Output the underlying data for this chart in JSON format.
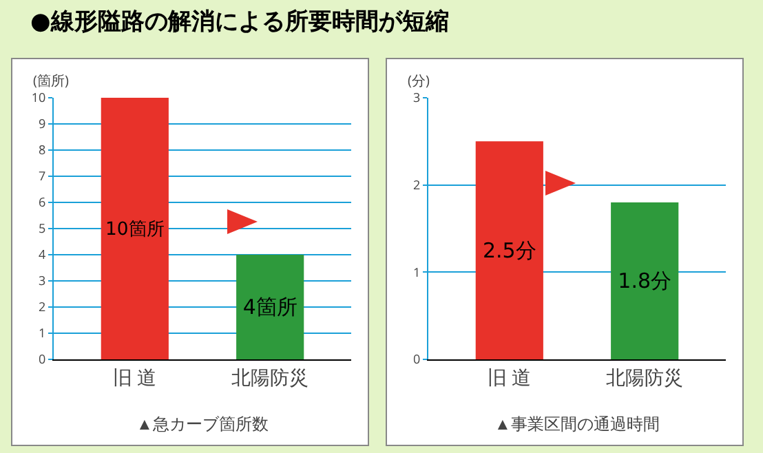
{
  "chart_data": [
    {
      "type": "bar",
      "title": "●線形隘路の解消による所要時間が短縮",
      "ylabel": "(箇所)",
      "categories": [
        "旧 道",
        "北陽防災"
      ],
      "values": [
        10,
        4
      ],
      "colors": [
        "#e8322a",
        "#2e9a3c"
      ],
      "value_labels": [
        "10箇所",
        "4箇所"
      ],
      "ylim": [
        0,
        10
      ],
      "yticks": [
        0,
        1,
        2,
        3,
        4,
        5,
        6,
        7,
        8,
        9,
        10
      ],
      "grid": "y",
      "annotations": [
        "▲急カーブ箇所数"
      ]
    },
    {
      "type": "bar",
      "ylabel": "(分)",
      "categories": [
        "旧 道",
        "北陽防災"
      ],
      "values": [
        2.5,
        1.8
      ],
      "colors": [
        "#e8322a",
        "#2e9a3c"
      ],
      "value_labels": [
        "2.5分",
        "1.8分"
      ],
      "ylim": [
        0,
        3
      ],
      "yticks": [
        0,
        1,
        2,
        3
      ],
      "grid": "y",
      "annotations": [
        "▲事業区間の通過時間"
      ]
    }
  ]
}
